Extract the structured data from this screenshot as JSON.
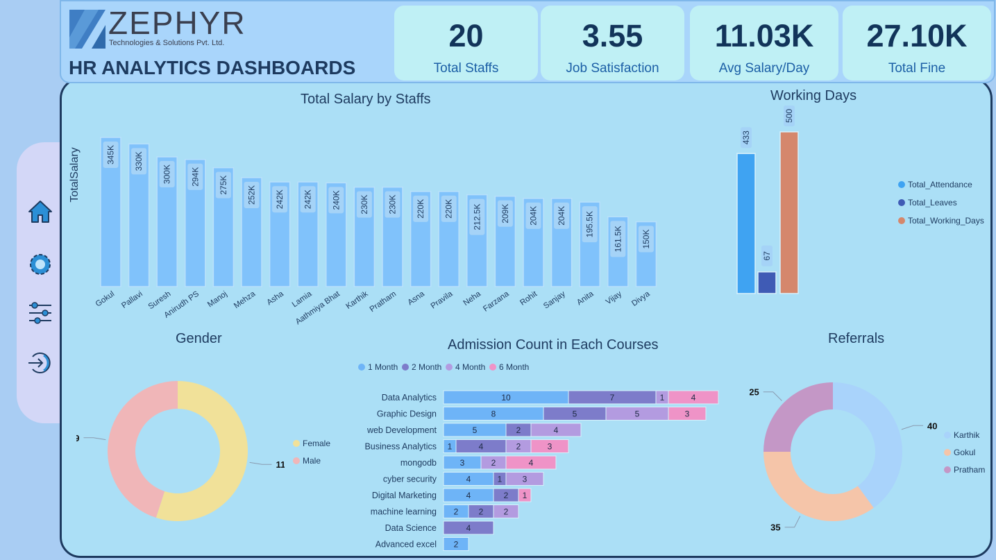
{
  "brand": {
    "name": "ZEPHYR",
    "tagline": "Technologies & Solutions Pvt. Ltd.",
    "dashboard_title": "HR ANALYTICS DASHBOARDS"
  },
  "kpis": [
    {
      "value": "20",
      "label": "Total Staffs"
    },
    {
      "value": "3.55",
      "label": "Job Satisfaction"
    },
    {
      "value": "11.03K",
      "label": "Avg Salary/Day"
    },
    {
      "value": "27.10K",
      "label": "Total Fine"
    }
  ],
  "nav": {
    "icons": [
      "home-icon",
      "settings-gear-icon",
      "filter-sliders-icon",
      "logout-icon"
    ]
  },
  "salary_chart": {
    "title": "Total Salary by Staffs",
    "ylabel": "TotalSalary",
    "bar_color": "#80c2fb",
    "label_bg": "#a5d3f7"
  },
  "working_days": {
    "title": "Working Days",
    "legend": [
      {
        "name": "Total_Attendance",
        "color": "#3fa3f2"
      },
      {
        "name": "Total_Leaves",
        "color": "#3f5bb5"
      },
      {
        "name": "Total_Working_Days",
        "color": "#d5876c"
      }
    ]
  },
  "gender": {
    "title": "Gender",
    "legend": [
      {
        "name": "Female",
        "color": "#f1e199"
      },
      {
        "name": "Male",
        "color": "#f0b6b8"
      }
    ]
  },
  "admissions": {
    "title": "Admission Count in Each Courses",
    "legend": [
      {
        "name": "1 Month",
        "color": "#6eb4f7"
      },
      {
        "name": "2 Month",
        "color": "#7d7cca"
      },
      {
        "name": "4 Month",
        "color": "#b39be0"
      },
      {
        "name": "6 Month",
        "color": "#ef93c7"
      }
    ]
  },
  "referrals": {
    "title": "Referrals",
    "legend": [
      {
        "name": "Karthik",
        "color": "#a9d3fb"
      },
      {
        "name": "Gokul",
        "color": "#f5c5a9"
      },
      {
        "name": "Pratham",
        "color": "#c497c6"
      }
    ]
  },
  "chart_data": [
    {
      "type": "bar",
      "title": "Total Salary by Staffs",
      "ylabel": "TotalSalary",
      "categories": [
        "Gokul",
        "Pallavi",
        "Suresh",
        "Anirudh PS",
        "Manoj",
        "Mehza",
        "Asha",
        "Lamia",
        "Aathmiya Bhat",
        "Karthik",
        "Pratham",
        "Asna",
        "Pravila",
        "Neha",
        "Farzana",
        "Rohit",
        "Sanjay",
        "Anita",
        "Vijay",
        "Divya"
      ],
      "values": [
        345000,
        330000,
        300000,
        294000,
        275000,
        252000,
        242000,
        242000,
        240000,
        230000,
        230000,
        220000,
        220000,
        212500,
        209000,
        204000,
        204000,
        195500,
        161500,
        150000
      ],
      "labels": [
        "345K",
        "330K",
        "300K",
        "294K",
        "275K",
        "252K",
        "242K",
        "242K",
        "240K",
        "230K",
        "230K",
        "220K",
        "220K",
        "212.5K",
        "209K",
        "204K",
        "204K",
        "195.5K",
        "161.5K",
        "150K"
      ]
    },
    {
      "type": "bar",
      "title": "Working Days",
      "series": [
        {
          "name": "Total_Attendance",
          "values": [
            433
          ]
        },
        {
          "name": "Total_Leaves",
          "values": [
            67
          ]
        },
        {
          "name": "Total_Working_Days",
          "values": [
            500
          ]
        }
      ]
    },
    {
      "type": "pie",
      "title": "Gender",
      "categories": [
        "Female",
        "Male"
      ],
      "values": [
        11,
        9
      ]
    },
    {
      "type": "bar",
      "title": "Admission Count in Each Courses",
      "categories": [
        "Data Analytics",
        "Graphic Design",
        "web Development",
        "Business Analytics",
        "mongodb",
        "cyber security",
        "Digital Marketing",
        "machine learning",
        "Data Science",
        "Advanced excel"
      ],
      "series": [
        {
          "name": "1 Month",
          "values": [
            10,
            8,
            5,
            1,
            3,
            4,
            4,
            2,
            0,
            2
          ]
        },
        {
          "name": "2 Month",
          "values": [
            7,
            5,
            2,
            4,
            0,
            1,
            2,
            2,
            4,
            0
          ]
        },
        {
          "name": "4 Month",
          "values": [
            1,
            5,
            4,
            2,
            2,
            3,
            0,
            2,
            0,
            0
          ]
        },
        {
          "name": "6 Month",
          "values": [
            4,
            3,
            0,
            3,
            4,
            0,
            1,
            0,
            0,
            0
          ]
        }
      ]
    },
    {
      "type": "pie",
      "title": "Referrals",
      "categories": [
        "Karthik",
        "Gokul",
        "Pratham"
      ],
      "values": [
        40,
        35,
        25
      ]
    }
  ]
}
